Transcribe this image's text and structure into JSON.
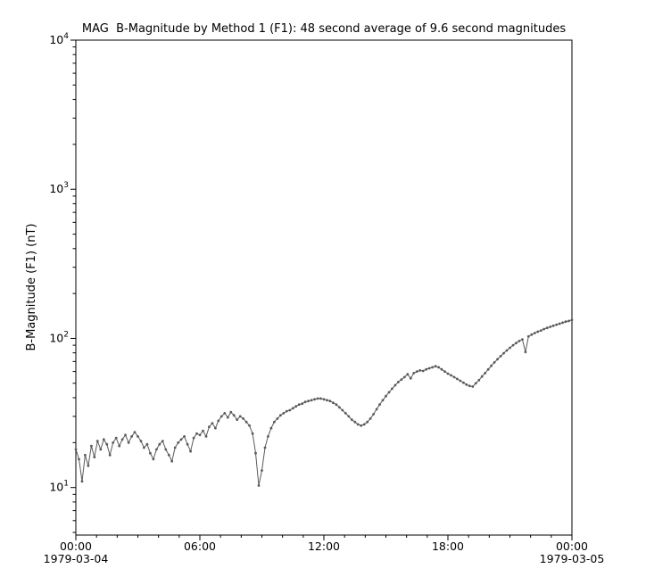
{
  "chart_data": {
    "type": "line",
    "title": "MAG  B-Magnitude by Method 1 (F1): 48 second average of 9.6 second magnitudes",
    "ylabel": "B-Magnitude (F1) (nT)",
    "xlabel": "",
    "x_start_label": "1979-03-04",
    "x_end_label": "1979-03-05",
    "x_ticks": [
      {
        "hours": 0,
        "label": "00:00"
      },
      {
        "hours": 6,
        "label": "06:00"
      },
      {
        "hours": 12,
        "label": "12:00"
      },
      {
        "hours": 18,
        "label": "18:00"
      },
      {
        "hours": 24,
        "label": "00:00"
      }
    ],
    "y_scale": "log",
    "y_ticks_exponents": [
      1,
      2,
      3,
      4
    ],
    "ylim": [
      4.8,
      10000
    ],
    "xlim_hours": [
      0,
      24
    ],
    "grid": false,
    "legend": "none",
    "series_color": "#5a5a5a",
    "axis_color": "#000000",
    "background": "#ffffff",
    "x_hours_start": 0,
    "x_hours_step": 0.15,
    "values": [
      18.0,
      15.5,
      11.0,
      16.5,
      14.0,
      19.0,
      16.0,
      20.5,
      18.0,
      21.0,
      19.5,
      16.5,
      20.0,
      21.5,
      19.0,
      21.0,
      22.5,
      20.0,
      22.0,
      23.5,
      22.0,
      20.5,
      18.5,
      19.5,
      17.0,
      15.5,
      18.0,
      19.5,
      20.5,
      18.0,
      16.5,
      15.0,
      18.5,
      20.0,
      21.0,
      22.0,
      19.5,
      17.5,
      21.5,
      23.0,
      22.5,
      24.0,
      22.0,
      25.5,
      27.0,
      25.0,
      28.0,
      30.0,
      31.5,
      29.5,
      32.0,
      30.5,
      28.5,
      30.0,
      29.0,
      27.5,
      26.0,
      23.0,
      17.0,
      10.3,
      13.0,
      18.5,
      22.0,
      25.0,
      27.5,
      29.0,
      30.5,
      31.5,
      32.5,
      33.0,
      34.0,
      35.0,
      36.0,
      36.5,
      37.5,
      38.0,
      38.5,
      39.0,
      39.5,
      39.5,
      39.0,
      38.5,
      38.0,
      37.0,
      36.0,
      34.5,
      33.0,
      31.5,
      30.0,
      28.5,
      27.5,
      26.5,
      26.0,
      26.5,
      27.5,
      29.0,
      31.0,
      33.5,
      36.0,
      38.5,
      41.0,
      43.5,
      46.0,
      48.5,
      51.0,
      53.0,
      55.0,
      57.5,
      54.0,
      58.5,
      60.0,
      61.0,
      60.5,
      62.0,
      63.0,
      64.0,
      65.0,
      64.0,
      62.0,
      60.0,
      58.0,
      56.5,
      55.0,
      53.5,
      52.0,
      50.5,
      49.0,
      48.0,
      47.5,
      50.0,
      52.5,
      55.5,
      58.5,
      62.0,
      65.5,
      69.0,
      72.5,
      76.0,
      79.5,
      83.0,
      86.5,
      90.0,
      93.0,
      96.0,
      98.5,
      81.0,
      103.0,
      106.0,
      108.5,
      111.0,
      113.0,
      115.5,
      117.5,
      119.5,
      121.5,
      123.5,
      125.5,
      127.5,
      129.5,
      131.0,
      133.0
    ]
  }
}
